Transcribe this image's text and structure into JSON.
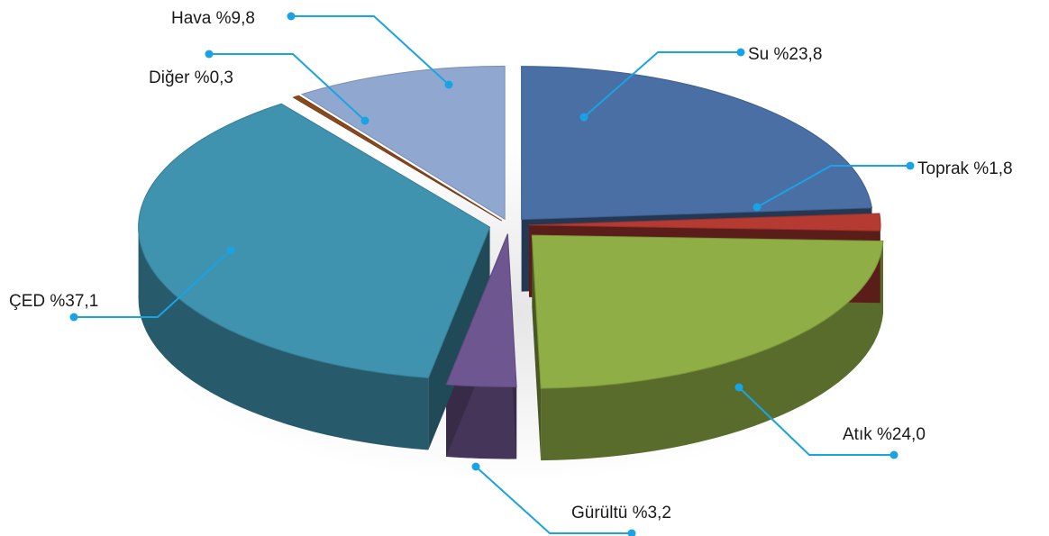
{
  "chart_data": {
    "type": "pie",
    "three_d": true,
    "exploded": true,
    "title": "",
    "slices": [
      {
        "key": "su",
        "label": "Su %23,8",
        "value": 23.8,
        "color": "#4a6fa5"
      },
      {
        "key": "toprak",
        "label": "Toprak %1,8",
        "value": 1.8,
        "color": "#b53a32"
      },
      {
        "key": "atik",
        "label": "Atık %24,0",
        "value": 24.0,
        "color": "#8fae45"
      },
      {
        "key": "gurultu",
        "label": "Gürültü %3,2",
        "value": 3.2,
        "color": "#6e5690"
      },
      {
        "key": "ced",
        "label": "ÇED %37,1",
        "value": 37.1,
        "color": "#3f93ae"
      },
      {
        "key": "diger",
        "label": "Diğer %0,3",
        "value": 0.3,
        "color": "#8a4a1c"
      },
      {
        "key": "hava",
        "label": "Hava %9,8",
        "value": 9.8,
        "color": "#90a8d0"
      }
    ],
    "leader_color": "#1aa3e3",
    "legend": "none"
  }
}
